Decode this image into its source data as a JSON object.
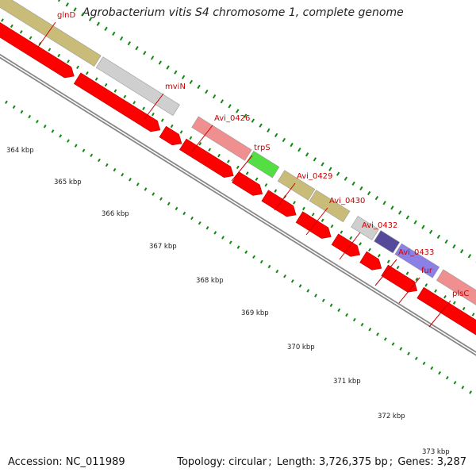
{
  "title": "Agrobacterium vitis S4 chromosome 1, complete genome",
  "footer": {
    "accession_label": "Accession:",
    "accession": "NC_011989",
    "topology_label": "Topology:",
    "topology": "circular",
    "length_label": "Length:",
    "length": "3,726,375 bp",
    "genes_label": "Genes:",
    "genes": "3,287"
  },
  "scale": {
    "unit": "kbp",
    "ticks": [
      "364 kbp",
      "365 kbp",
      "366 kbp",
      "367 kbp",
      "368 kbp",
      "369 kbp",
      "370 kbp",
      "371 kbp",
      "372 kbp",
      "373 kbp"
    ]
  },
  "gene_labels": [
    "glnD",
    "mviN",
    "Avi_0426",
    "trpS",
    "Avi_0429",
    "Avi_0430",
    "Avi_0432",
    "Avi_0433",
    "fur",
    "plsC"
  ],
  "colors": {
    "cds": "#ff0000",
    "label": "#cc0000",
    "tick": "#118811",
    "backbone": "#888888",
    "glnD": "#c8bc78",
    "mviN": "#cfcfcf",
    "Avi_0426": "#ef8f8f",
    "trpS": "#55dd44",
    "Avi_0429": "#c8bc78",
    "Avi_0430": "#c8bc78",
    "Avi_0432": "#cfcfcf",
    "Avi_0433": "#554a9a",
    "fur": "#8a80e6",
    "plsC": "#ef8f8f"
  }
}
